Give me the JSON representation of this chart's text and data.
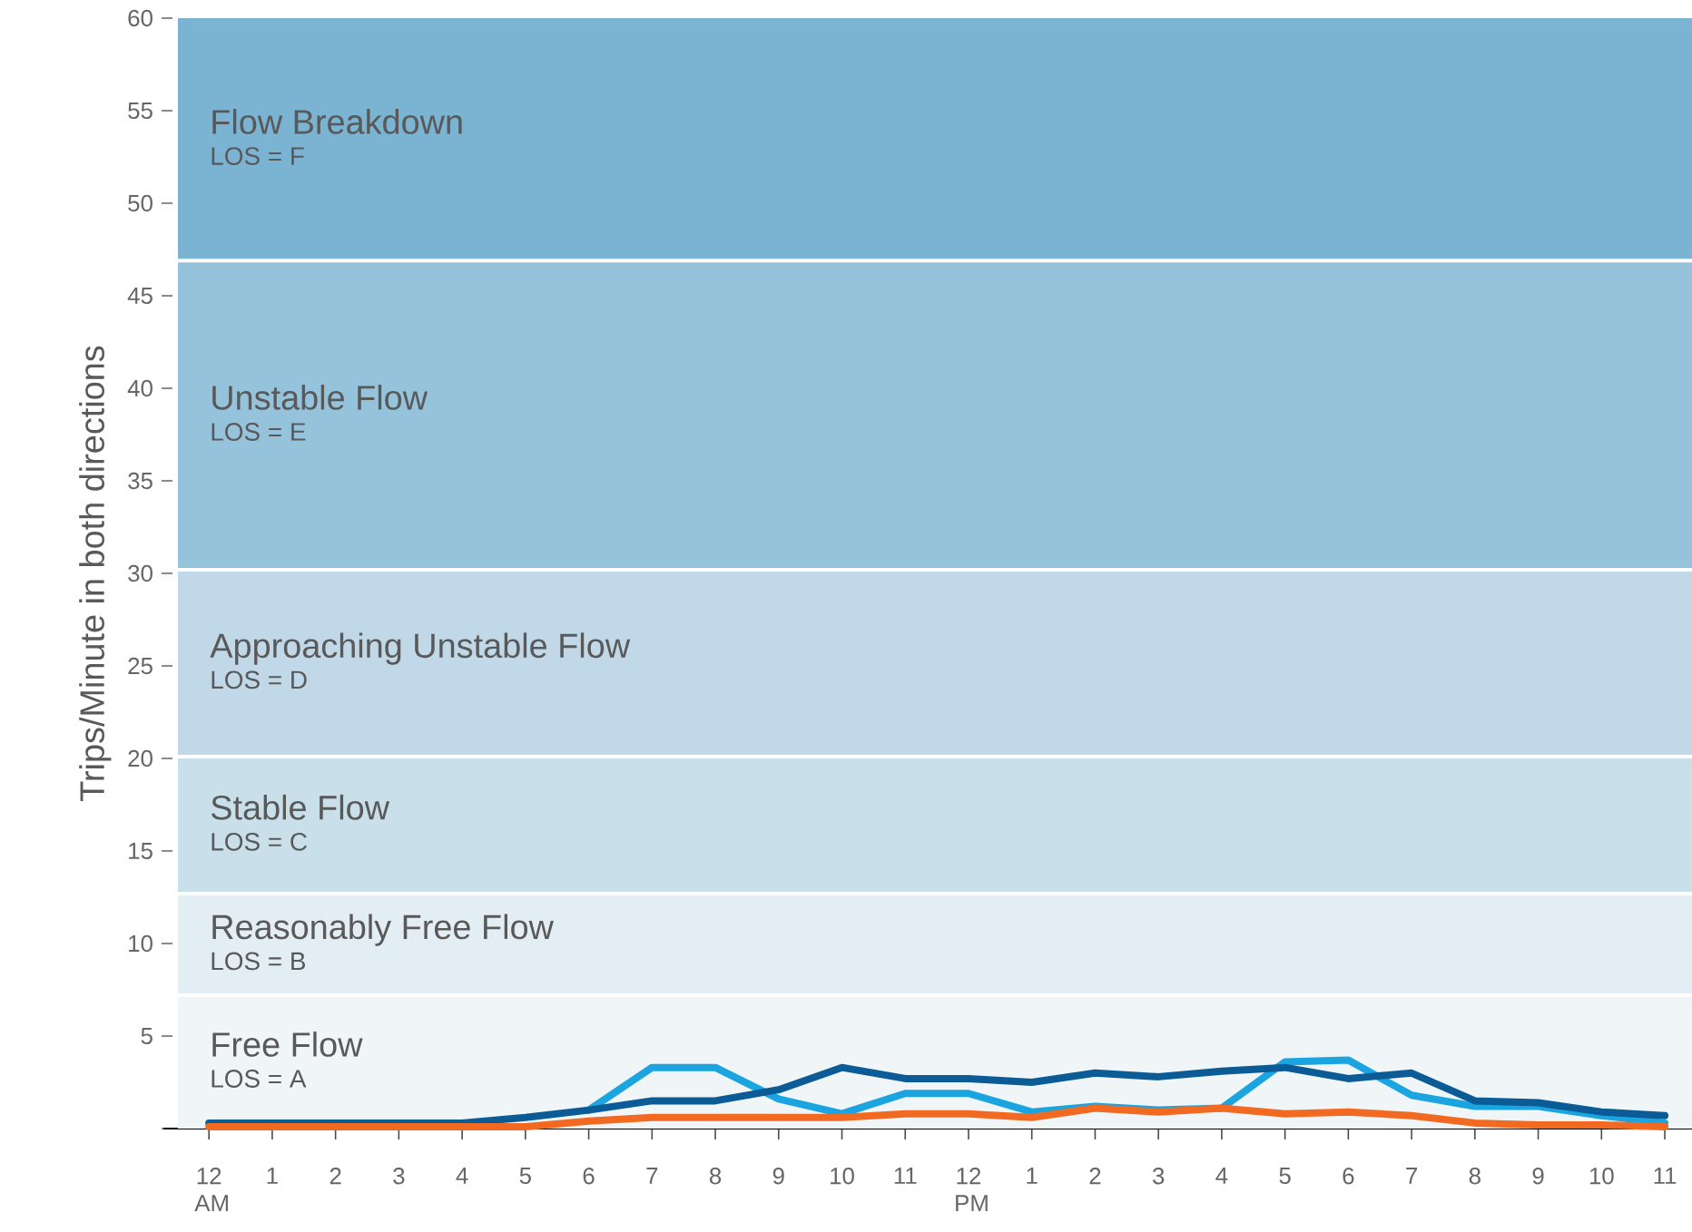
{
  "chart_data": {
    "type": "line",
    "ylabel": "Trips/Minute in both directions",
    "categories": [
      "12 AM",
      "1",
      "2",
      "3",
      "4",
      "5",
      "6",
      "7",
      "8",
      "9",
      "10",
      "11",
      "12 PM",
      "1",
      "2",
      "3",
      "4",
      "5",
      "6",
      "7",
      "8",
      "9",
      "10",
      "11"
    ],
    "series": [
      {
        "color": "#1aa5e0",
        "values": [
          null,
          null,
          null,
          null,
          null,
          null,
          1.0,
          3.3,
          3.3,
          1.6,
          0.8,
          1.9,
          1.9,
          0.9,
          1.2,
          1.0,
          1.1,
          3.6,
          3.7,
          1.8,
          1.2,
          1.2,
          0.7,
          0.3
        ]
      },
      {
        "color": "#0b5b97",
        "values": [
          0.3,
          0.3,
          0.3,
          0.3,
          0.3,
          0.6,
          1.0,
          1.5,
          1.5,
          2.1,
          3.3,
          2.7,
          2.7,
          2.5,
          3.0,
          2.8,
          3.1,
          3.3,
          2.7,
          3.0,
          1.5,
          1.4,
          0.9,
          0.7
        ]
      },
      {
        "color": "#f26a21",
        "values": [
          0.1,
          0.1,
          0.1,
          0.1,
          0.1,
          0.1,
          0.4,
          0.6,
          0.6,
          0.6,
          0.6,
          0.8,
          0.8,
          0.6,
          1.1,
          0.9,
          1.1,
          0.8,
          0.9,
          0.7,
          0.3,
          0.2,
          0.2,
          0.1
        ]
      }
    ],
    "ylim": [
      0,
      60
    ],
    "yticks": [
      {
        "value": 0,
        "label": null
      },
      5,
      10,
      15,
      20,
      25,
      30,
      35,
      40,
      45,
      50,
      55,
      60
    ],
    "bands": [
      {
        "axis": "y",
        "from": 0,
        "to": 7.2,
        "label": "Free Flow",
        "color": "#f0f5f8"
      },
      {
        "axis": "y",
        "from": 7.2,
        "to": 12.7,
        "label": "Reasonably Free Flow",
        "color": "#e3eef4"
      },
      {
        "axis": "y",
        "from": 12.7,
        "to": 20.1,
        "label": "Stable Flow",
        "color": "#c9dfea"
      },
      {
        "axis": "y",
        "from": 20.1,
        "to": 30.2,
        "label": "Approaching Unstable Flow",
        "color": "#c0d8e7"
      },
      {
        "axis": "y",
        "from": 30.2,
        "to": 46.9,
        "label": "Unstable Flow",
        "color": "#96c3dc"
      },
      {
        "axis": "y",
        "from": 46.9,
        "to": 60,
        "label": "Flow Breakdown",
        "color": "#7bb3d2"
      }
    ],
    "annotations": [
      "LOS = A",
      "LOS = B",
      "LOS = C",
      "LOS = D",
      "LOS = E",
      "LOS = F"
    ],
    "marker": "none",
    "line_style": "solid"
  }
}
